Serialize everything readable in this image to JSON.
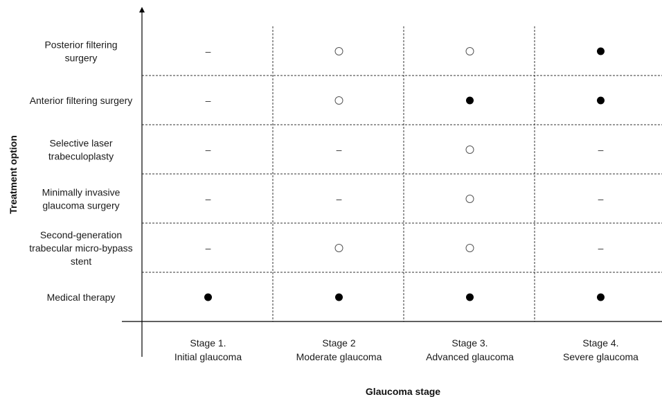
{
  "chart_data": {
    "type": "table",
    "xlabel": "Glaucoma stage",
    "ylabel": "Treatment option",
    "columns": [
      {
        "line1": "Stage 1.",
        "line2": "Initial glaucoma"
      },
      {
        "line1": "Stage 2",
        "line2": "Moderate glaucoma"
      },
      {
        "line1": "Stage 3.",
        "line2": "Advanced glaucoma"
      },
      {
        "line1": "Stage 4.",
        "line2": "Severe glaucoma"
      }
    ],
    "rows": [
      {
        "label": [
          "Posterior filtering",
          "surgery"
        ],
        "cells": [
          "none",
          "open",
          "open",
          "filled"
        ]
      },
      {
        "label": [
          "Anterior filtering surgery"
        ],
        "cells": [
          "none",
          "open",
          "filled",
          "filled"
        ]
      },
      {
        "label": [
          "Selective laser",
          "trabeculoplasty"
        ],
        "cells": [
          "none",
          "none",
          "open",
          "none"
        ]
      },
      {
        "label": [
          "Minimally  invasive",
          "glaucoma surgery"
        ],
        "cells": [
          "none",
          "none",
          "open",
          "none"
        ]
      },
      {
        "label": [
          "Second-generation",
          "trabecular micro-bypass",
          "stent"
        ],
        "cells": [
          "none",
          "open",
          "open",
          "none"
        ]
      },
      {
        "label": [
          "Medical therapy"
        ],
        "cells": [
          "filled",
          "filled",
          "filled",
          "filled"
        ]
      }
    ],
    "symbols": {
      "none": "–",
      "open": "open-circle",
      "filled": "filled-circle"
    },
    "colors": {
      "line": "#333333",
      "filled": "#000000",
      "open_stroke": "#555555"
    }
  }
}
